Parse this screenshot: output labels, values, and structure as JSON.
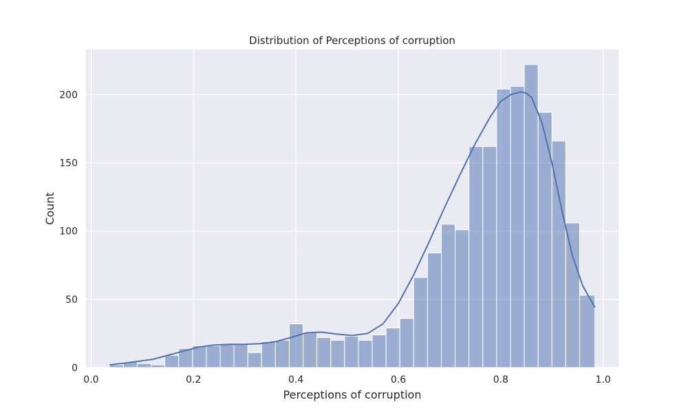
{
  "chart_data": {
    "type": "bar",
    "subtype": "histogram_with_kde",
    "title": "Distribution of Perceptions of corruption",
    "xlabel": "Perceptions of corruption",
    "ylabel": "Count",
    "xlim": [
      -0.01,
      1.03
    ],
    "ylim": [
      0,
      233
    ],
    "xticks": [
      0.0,
      0.2,
      0.4,
      0.6,
      0.8,
      1.0
    ],
    "xtick_labels": [
      "0.0",
      "0.2",
      "0.4",
      "0.6",
      "0.8",
      "1.0"
    ],
    "yticks": [
      0,
      50,
      100,
      150,
      200
    ],
    "ytick_labels": [
      "0",
      "50",
      "100",
      "150",
      "200"
    ],
    "grid": true,
    "colors": {
      "plot_background": "#eaeaf2",
      "grid": "#ffffff",
      "bar_fill": "#4c72b0",
      "bar_fill_opacity": 0.5,
      "bar_edge": "#ffffff",
      "kde_line": "#4c72b0"
    },
    "bins": [
      {
        "x0": 0.036,
        "x1": 0.063,
        "count": 2
      },
      {
        "x0": 0.063,
        "x1": 0.09,
        "count": 4
      },
      {
        "x0": 0.09,
        "x1": 0.117,
        "count": 3
      },
      {
        "x0": 0.117,
        "x1": 0.144,
        "count": 2
      },
      {
        "x0": 0.144,
        "x1": 0.171,
        "count": 9
      },
      {
        "x0": 0.171,
        "x1": 0.198,
        "count": 14
      },
      {
        "x0": 0.198,
        "x1": 0.225,
        "count": 16
      },
      {
        "x0": 0.225,
        "x1": 0.252,
        "count": 16
      },
      {
        "x0": 0.252,
        "x1": 0.279,
        "count": 17
      },
      {
        "x0": 0.279,
        "x1": 0.306,
        "count": 17
      },
      {
        "x0": 0.306,
        "x1": 0.333,
        "count": 11
      },
      {
        "x0": 0.333,
        "x1": 0.36,
        "count": 19
      },
      {
        "x0": 0.36,
        "x1": 0.387,
        "count": 20
      },
      {
        "x0": 0.387,
        "x1": 0.414,
        "count": 32
      },
      {
        "x0": 0.414,
        "x1": 0.441,
        "count": 26
      },
      {
        "x0": 0.441,
        "x1": 0.468,
        "count": 22
      },
      {
        "x0": 0.468,
        "x1": 0.495,
        "count": 20
      },
      {
        "x0": 0.495,
        "x1": 0.522,
        "count": 23
      },
      {
        "x0": 0.522,
        "x1": 0.549,
        "count": 20
      },
      {
        "x0": 0.549,
        "x1": 0.576,
        "count": 24
      },
      {
        "x0": 0.576,
        "x1": 0.603,
        "count": 29
      },
      {
        "x0": 0.603,
        "x1": 0.63,
        "count": 36
      },
      {
        "x0": 0.63,
        "x1": 0.657,
        "count": 66
      },
      {
        "x0": 0.657,
        "x1": 0.684,
        "count": 84
      },
      {
        "x0": 0.684,
        "x1": 0.711,
        "count": 105
      },
      {
        "x0": 0.711,
        "x1": 0.738,
        "count": 101
      },
      {
        "x0": 0.738,
        "x1": 0.765,
        "count": 162
      },
      {
        "x0": 0.765,
        "x1": 0.792,
        "count": 162
      },
      {
        "x0": 0.792,
        "x1": 0.819,
        "count": 204
      },
      {
        "x0": 0.819,
        "x1": 0.846,
        "count": 206
      },
      {
        "x0": 0.846,
        "x1": 0.873,
        "count": 222
      },
      {
        "x0": 0.873,
        "x1": 0.9,
        "count": 187
      },
      {
        "x0": 0.9,
        "x1": 0.927,
        "count": 166
      },
      {
        "x0": 0.927,
        "x1": 0.954,
        "count": 106
      },
      {
        "x0": 0.954,
        "x1": 0.984,
        "count": 53
      }
    ],
    "kde": {
      "x": [
        0.036,
        0.06,
        0.09,
        0.12,
        0.15,
        0.18,
        0.21,
        0.24,
        0.27,
        0.3,
        0.33,
        0.36,
        0.39,
        0.42,
        0.45,
        0.48,
        0.51,
        0.54,
        0.57,
        0.6,
        0.63,
        0.66,
        0.69,
        0.72,
        0.75,
        0.78,
        0.8,
        0.82,
        0.84,
        0.85,
        0.86,
        0.88,
        0.9,
        0.92,
        0.94,
        0.96,
        0.984
      ],
      "y": [
        2,
        3,
        4.5,
        6,
        9,
        12,
        15,
        16.5,
        17,
        17,
        17.5,
        19,
        22,
        25.5,
        26,
        24.5,
        23.5,
        25,
        32,
        47,
        68,
        92,
        117,
        141,
        164,
        184,
        195,
        200,
        202,
        201,
        198,
        180,
        150,
        114,
        82,
        60,
        44
      ]
    }
  }
}
